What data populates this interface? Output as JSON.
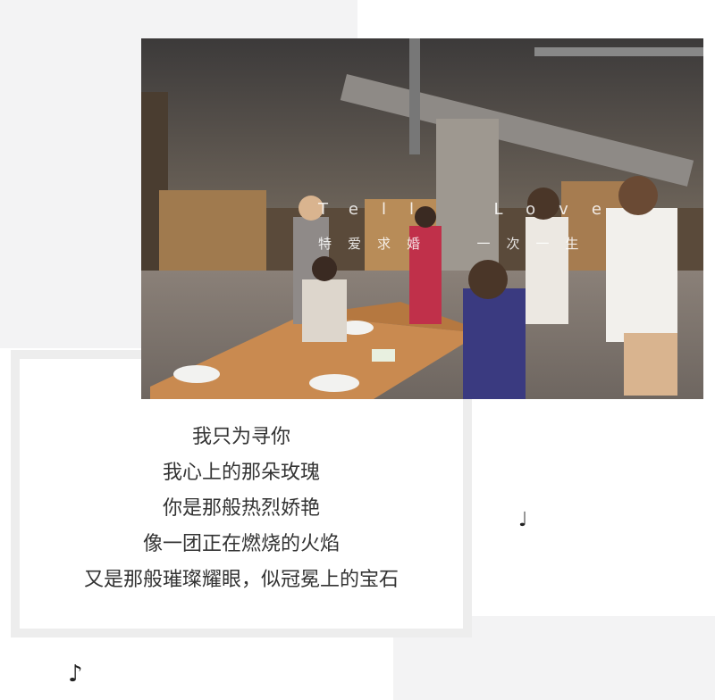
{
  "photo": {
    "overlay_line1": "Tell  Love",
    "overlay_line2": "特爱求婚  一次一生"
  },
  "poem": {
    "lines": [
      "我只为寻你",
      "我心上的那朵玫瑰",
      "你是那般热烈娇艳",
      "像一团正在燃烧的火焰",
      "又是那般璀璨耀眼，似冠冕上的宝石"
    ]
  },
  "decor": {
    "note_small": "♩",
    "note_large": "♪"
  }
}
